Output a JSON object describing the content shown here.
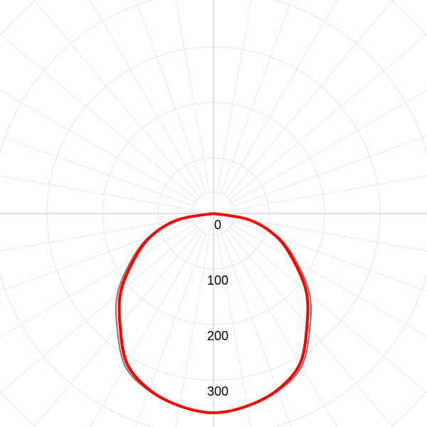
{
  "chart_data": {
    "type": "polar-line",
    "title": "",
    "angle_zero": "down",
    "radial_ticks": [
      0,
      100,
      200,
      300
    ],
    "radial_max": 500,
    "grid": true,
    "angular_grid_step_deg": 10,
    "angles_deg": [
      -90,
      -80,
      -70,
      -60,
      -50,
      -40,
      -30,
      -20,
      -10,
      0,
      10,
      20,
      30,
      40,
      50,
      60,
      70,
      80,
      90
    ],
    "series": [
      {
        "color": "#b06060",
        "values": [
          0,
          66,
          124,
          172,
          226,
          270,
          318,
          340,
          352,
          358,
          352,
          340,
          318,
          270,
          226,
          172,
          124,
          66,
          0
        ]
      },
      {
        "color": "#ff0000",
        "values": [
          0,
          65,
          120,
          165,
          218,
          262,
          312,
          338,
          352,
          359,
          352,
          338,
          312,
          262,
          218,
          165,
          120,
          65,
          0
        ]
      }
    ]
  }
}
